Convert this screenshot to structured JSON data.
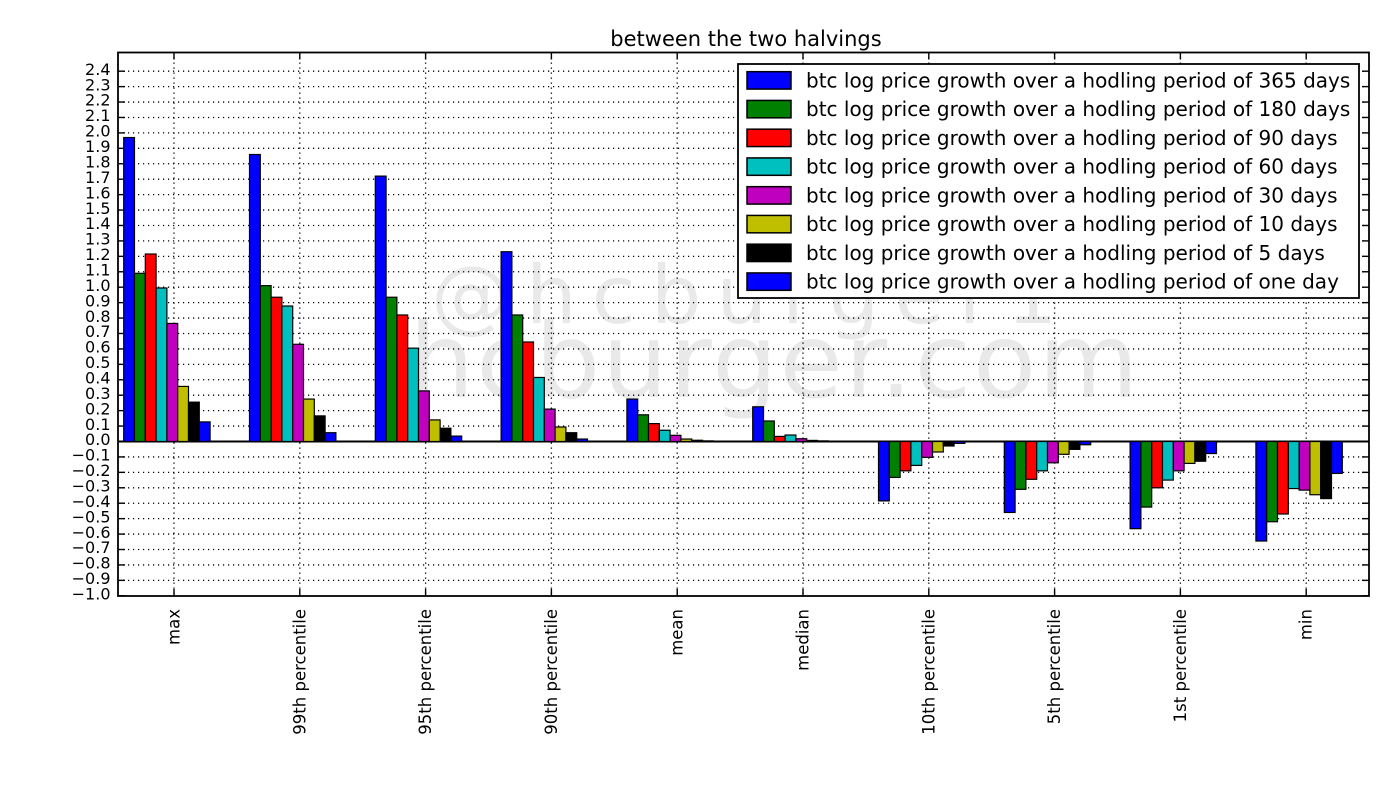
{
  "title": "between the two halvings",
  "watermark": {
    "line1": "@hcburger1",
    "line2": "hcburger.com",
    "color": "#e9e9e9"
  },
  "chart_data": {
    "type": "bar",
    "title": "between the two halvings",
    "categories": [
      "max",
      "99th percentile",
      "95th percentile",
      "90th percentile",
      "mean",
      "median",
      "10th percentile",
      "5th percentile",
      "1st percentile",
      "min"
    ],
    "series": [
      {
        "name": "btc log price growth over a hodling period of 365 days",
        "color": "#0000ff",
        "values": [
          1.97,
          1.86,
          1.72,
          1.23,
          0.275,
          0.225,
          -0.385,
          -0.46,
          -0.565,
          -0.645
        ]
      },
      {
        "name": "btc log price growth over a hodling period of 180 days",
        "color": "#008000",
        "values": [
          1.09,
          1.01,
          0.935,
          0.82,
          0.173,
          0.133,
          -0.233,
          -0.31,
          -0.425,
          -0.52
        ]
      },
      {
        "name": "btc log price growth over a hodling period of 90 days",
        "color": "#ff0000",
        "values": [
          1.215,
          0.935,
          0.82,
          0.645,
          0.116,
          0.033,
          -0.19,
          -0.245,
          -0.3,
          -0.47
        ]
      },
      {
        "name": "btc log price growth over a hodling period of 60 days",
        "color": "#00bfbf",
        "values": [
          0.995,
          0.878,
          0.605,
          0.415,
          0.073,
          0.042,
          -0.155,
          -0.19,
          -0.25,
          -0.305
        ]
      },
      {
        "name": "btc log price growth over a hodling period of 30 days",
        "color": "#bf00bf",
        "values": [
          0.765,
          0.63,
          0.328,
          0.21,
          0.04,
          0.018,
          -0.103,
          -0.138,
          -0.19,
          -0.315
        ]
      },
      {
        "name": "btc log price growth over a hodling period of 10 days",
        "color": "#bfbf00",
        "values": [
          0.357,
          0.275,
          0.14,
          0.094,
          0.016,
          0.007,
          -0.068,
          -0.083,
          -0.142,
          -0.345
        ]
      },
      {
        "name": "btc log price growth over a hodling period of 5 days",
        "color": "#000000",
        "values": [
          0.255,
          0.166,
          0.086,
          0.057,
          0.008,
          0.004,
          -0.029,
          -0.051,
          -0.128,
          -0.37
        ]
      },
      {
        "name": "btc log price growth over a hodling period of one day",
        "color": "#0000ff",
        "values": [
          0.127,
          0.057,
          0.035,
          0.016,
          0.004,
          0.002,
          -0.012,
          -0.021,
          -0.078,
          -0.207
        ]
      }
    ],
    "xlabel": "",
    "ylabel": "",
    "ylim": [
      -1.0,
      2.52
    ],
    "yticks": {
      "min": -1.0,
      "max": 2.4,
      "step": 0.1
    },
    "grid": true,
    "legend_position": "upper right"
  }
}
